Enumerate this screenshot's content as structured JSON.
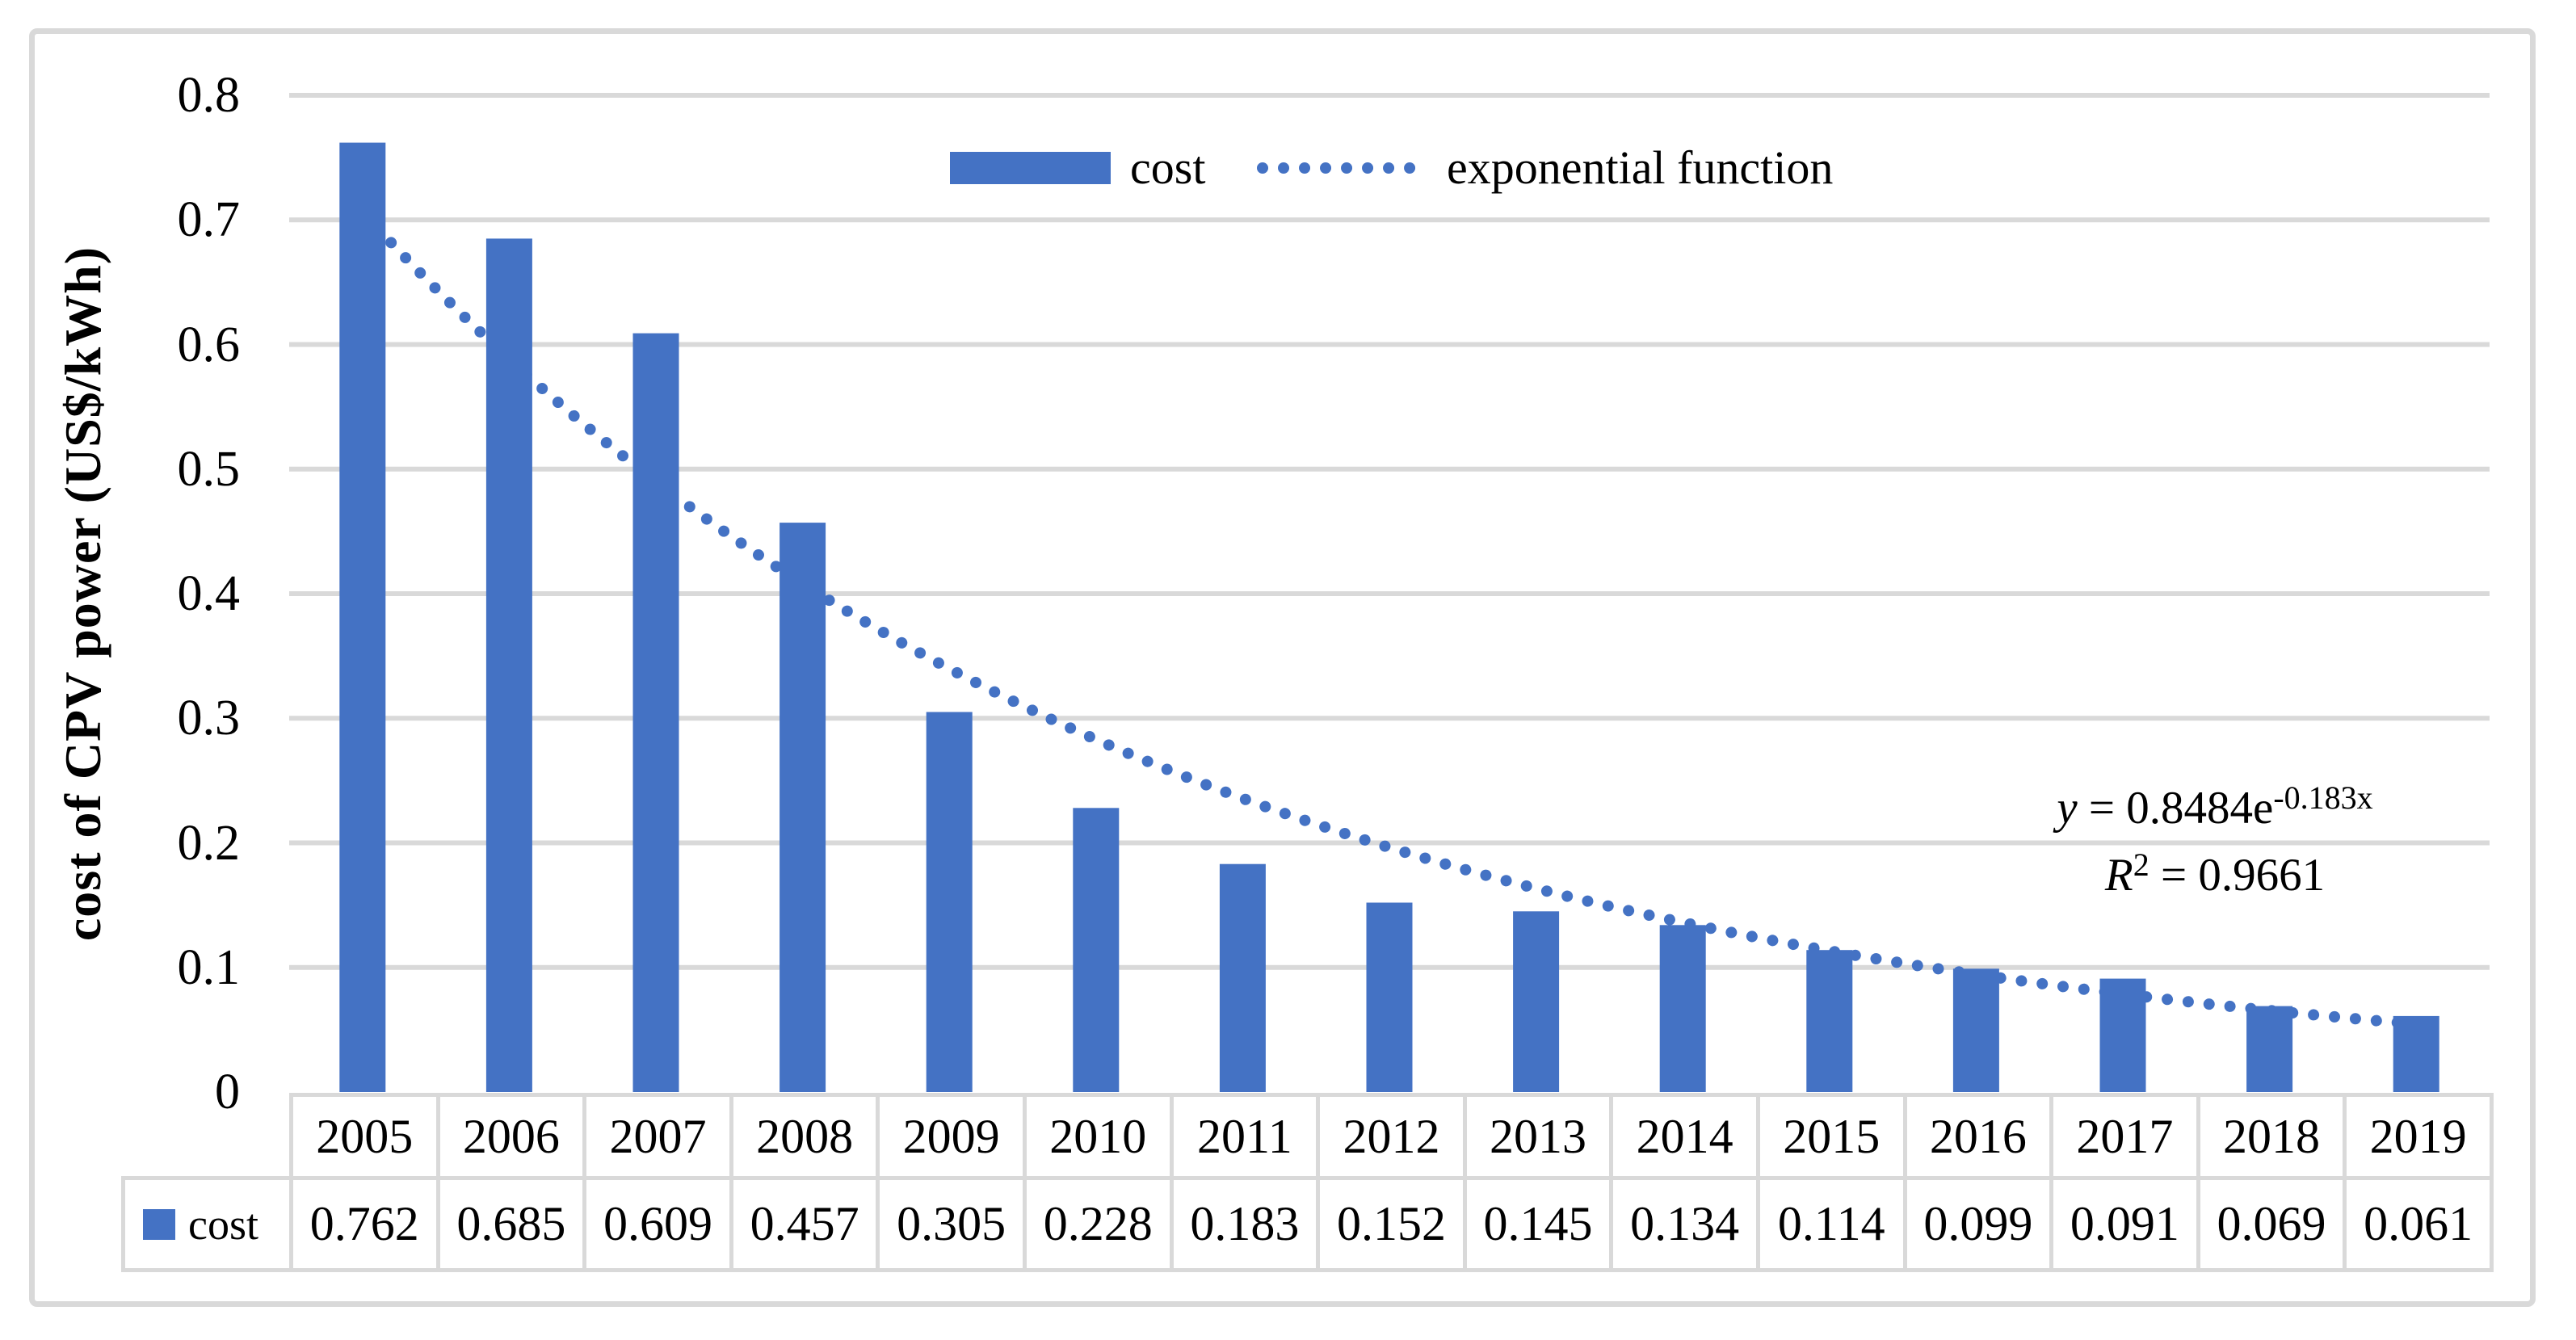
{
  "figure": {
    "background": "#ffffff",
    "border_color": "#d9d9d9"
  },
  "chart_data": {
    "type": "bar",
    "title": "",
    "categories": [
      "2005",
      "2006",
      "2007",
      "2008",
      "2009",
      "2010",
      "2011",
      "2012",
      "2013",
      "2014",
      "2015",
      "2016",
      "2017",
      "2018",
      "2019"
    ],
    "series": [
      {
        "name": "cost",
        "color": "#4472c4",
        "values": [
          0.762,
          0.685,
          0.609,
          0.457,
          0.305,
          0.228,
          0.183,
          0.152,
          0.145,
          0.134,
          0.114,
          0.099,
          0.091,
          0.069,
          0.061
        ]
      }
    ],
    "trendline": {
      "label": "exponential function",
      "type": "exponential",
      "coefficient": 0.8484,
      "exponent": -0.183,
      "r_squared": 0.9661,
      "color": "#4472c4",
      "style": "dotted"
    },
    "xlabel": "",
    "ylabel": "cost of CPV power (US$/kWh)",
    "ylim": [
      0,
      0.8
    ],
    "yticks": [
      0,
      0.1,
      0.2,
      0.3,
      0.4,
      0.5,
      0.6,
      0.7,
      0.8
    ],
    "ytick_labels": [
      "0",
      "0.1",
      "0.2",
      "0.3",
      "0.4",
      "0.5",
      "0.6",
      "0.7",
      "0.8"
    ],
    "grid": true,
    "gridline_color": "#d9d9d9",
    "legend_position": "top-center-inside",
    "data_table_shown": true
  },
  "legend": {
    "cost_label": "cost",
    "trendline_label": "exponential function"
  },
  "annotation": {
    "eq_lhs": "y",
    "eq_mid": " = 0.8484e",
    "eq_sup": "-0.183x",
    "r2_lhs": "R",
    "r2_sup": "2",
    "r2_rest": " = 0.9661"
  },
  "table": {
    "row_label": "cost"
  }
}
